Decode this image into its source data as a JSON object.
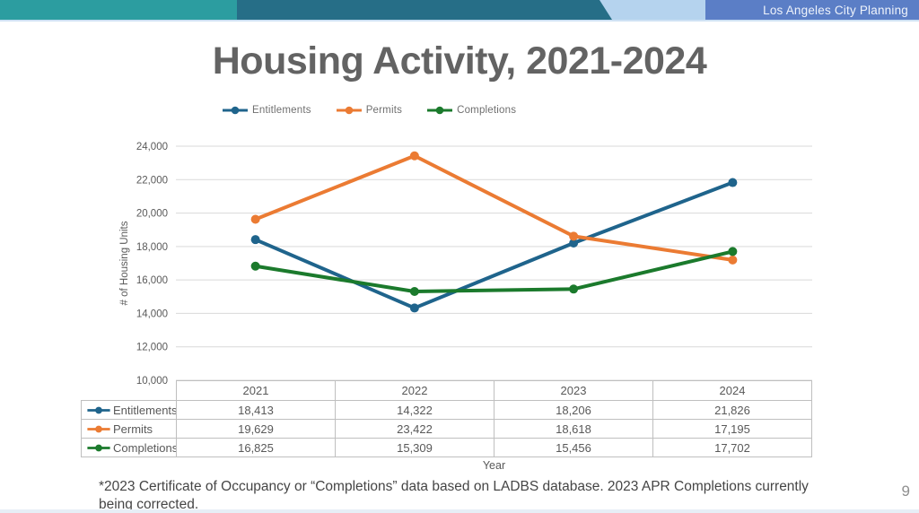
{
  "header": {
    "brand": "Los Angeles City Planning",
    "colors": {
      "teal": "#2C9DA0",
      "dark_teal": "#266E87",
      "light_blue": "#B5D3EE",
      "periwinkle": "#5B7EC6"
    }
  },
  "title": "Housing Activity, 2021-2024",
  "chart_data": {
    "type": "line",
    "title": "Housing Activity, 2021-2024",
    "categories": [
      "2021",
      "2022",
      "2023",
      "2024"
    ],
    "series": [
      {
        "name": "Entitlements",
        "color": "#1F648C",
        "values": [
          18413,
          14322,
          18206,
          21826
        ]
      },
      {
        "name": "Permits",
        "color": "#EB7B33",
        "values": [
          19629,
          23422,
          18618,
          17195
        ]
      },
      {
        "name": "Completions",
        "color": "#1B7A2C",
        "values": [
          16825,
          15309,
          15456,
          17702
        ]
      }
    ],
    "xlabel": "Year",
    "ylabel": "# of Housing Units",
    "ylim": [
      10000,
      24000
    ],
    "ytick_step": 2000,
    "grid": "horizontal",
    "legend_position": "top"
  },
  "table": {
    "headers": [
      "2021",
      "2022",
      "2023",
      "2024"
    ],
    "rows": [
      {
        "label": "Entitlements",
        "values": [
          "18,413",
          "14,322",
          "18,206",
          "21,826"
        ]
      },
      {
        "label": "Permits",
        "values": [
          "19,629",
          "23,422",
          "18,618",
          "17,195"
        ]
      },
      {
        "label": "Completions",
        "values": [
          "16,825",
          "15,309",
          "15,456",
          "17,702"
        ]
      }
    ],
    "xlabel": "Year"
  },
  "footnote": "*2023 Certificate of Occupancy or “Completions” data based on LADBS database. 2023 APR Completions currently being corrected.",
  "page_number": "9"
}
